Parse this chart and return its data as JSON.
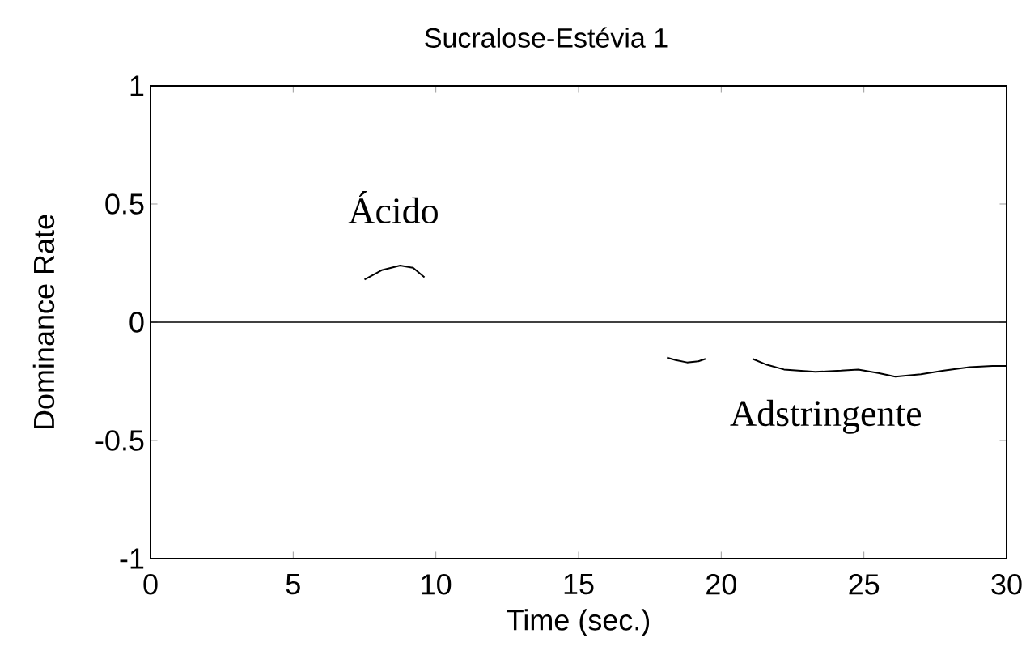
{
  "chart_data": {
    "type": "line",
    "title": "Sucralose-Estévia 1",
    "xlabel": "Time (sec.)",
    "ylabel": "Dominance Rate",
    "xlim": [
      0,
      30
    ],
    "ylim": [
      -1,
      1
    ],
    "xticks": [
      0,
      5,
      10,
      15,
      20,
      25,
      30
    ],
    "yticks": [
      -1,
      -0.5,
      0,
      0.5,
      1
    ],
    "series": [
      {
        "color": "#000000",
        "x": [
          7.5,
          8.1,
          8.75,
          9.2,
          9.6
        ],
        "values": [
          0.18,
          0.22,
          0.24,
          0.23,
          0.19
        ]
      },
      {
        "color": "#000000",
        "x": [
          18.1,
          18.4,
          18.8,
          19.2,
          19.45
        ],
        "values": [
          -0.15,
          -0.16,
          -0.17,
          -0.165,
          -0.155
        ]
      },
      {
        "color": "#000000",
        "x": [
          21.1,
          21.6,
          22.2,
          23.3,
          24.2,
          24.8,
          25.5,
          26.1,
          27.0,
          27.8,
          28.7,
          29.5,
          30.0
        ],
        "values": [
          -0.155,
          -0.18,
          -0.2,
          -0.21,
          -0.205,
          -0.2,
          -0.215,
          -0.23,
          -0.22,
          -0.205,
          -0.19,
          -0.185,
          -0.185
        ]
      }
    ],
    "ref_lines": [
      {
        "axis": "y",
        "value": 0,
        "color": "#000000"
      }
    ],
    "annotations": [
      "Ácido",
      "Adstringente"
    ],
    "grid": false
  }
}
